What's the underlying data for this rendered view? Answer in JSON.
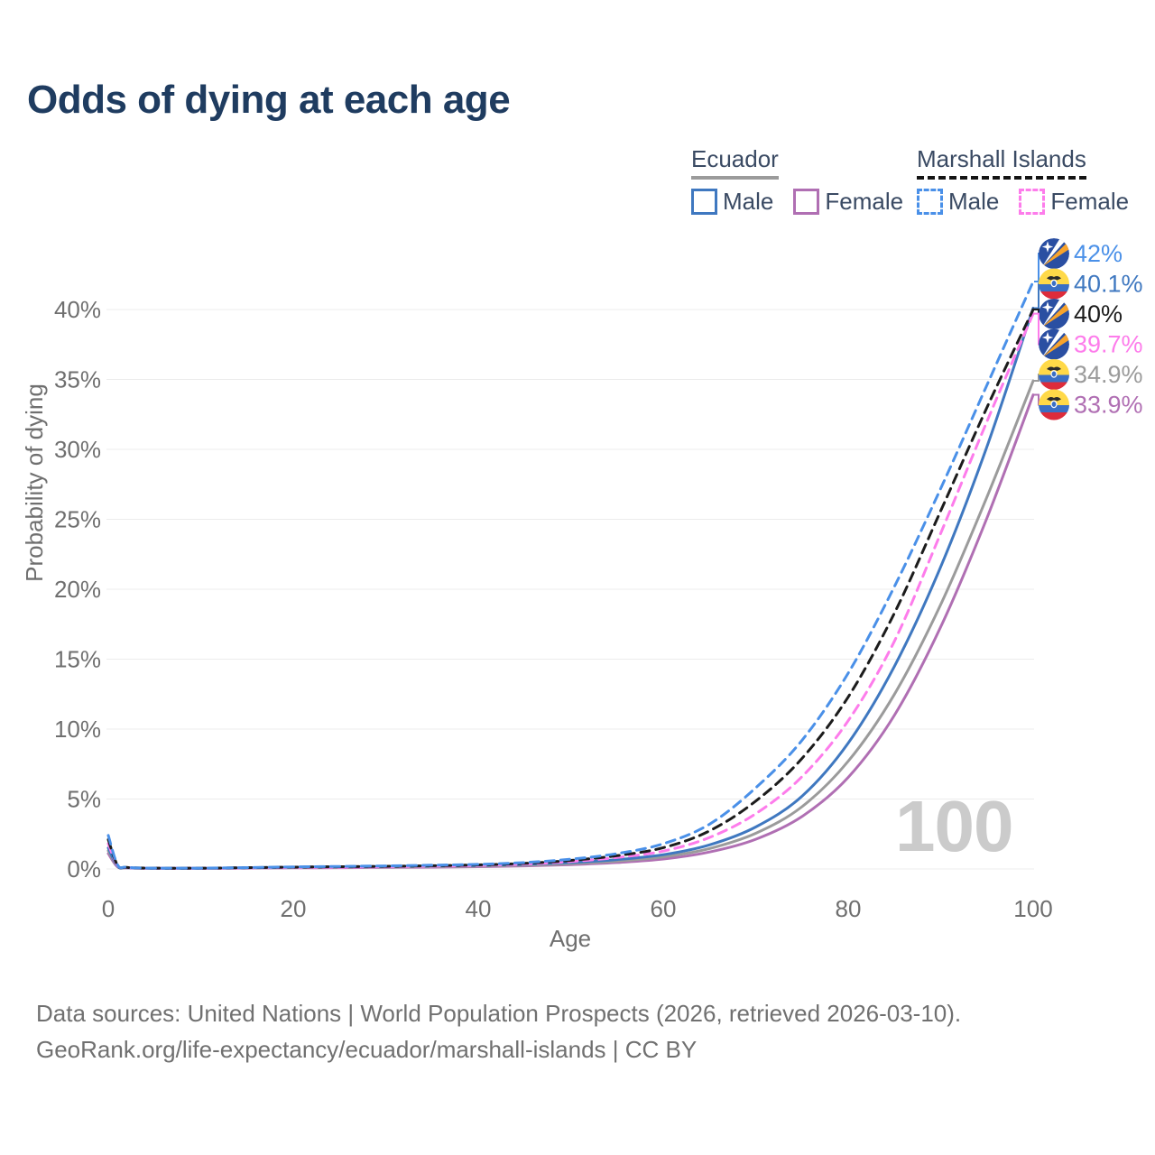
{
  "title": "Odds of dying at each age",
  "legend": {
    "groups": [
      {
        "title": "Ecuador",
        "underline": "solid",
        "underline_color": "#9b9b9b",
        "items": [
          {
            "label": "Male",
            "color": "#3f78c0",
            "dash": false
          },
          {
            "label": "Female",
            "color": "#b06fb3",
            "dash": false
          }
        ]
      },
      {
        "title": "Marshall Islands",
        "underline": "dashed",
        "underline_color": "#141414",
        "items": [
          {
            "label": "Male",
            "color": "#4a90e8",
            "dash": true
          },
          {
            "label": "Female",
            "color": "#fd7ceb",
            "dash": true
          }
        ]
      }
    ]
  },
  "watermark": "100",
  "source_line1": "Data sources: United Nations | World Population Prospects (2026, retrieved 2026-03-10).",
  "source_line2": "GeoRank.org/life-expectancy/ecuador/marshall-islands | CC BY",
  "chart_data": {
    "type": "line",
    "title": "Odds of dying at each age",
    "xlabel": "Age",
    "ylabel": "Probability of dying",
    "xlim": [
      0,
      100
    ],
    "ylim_pct": [
      0,
      44
    ],
    "x_ticks": [
      0,
      20,
      40,
      60,
      80,
      100
    ],
    "y_ticks_pct": [
      0,
      5,
      10,
      15,
      20,
      25,
      30,
      35,
      40
    ],
    "grid": "horizontal",
    "legend_position": "top-right",
    "x": [
      0,
      1,
      2,
      5,
      10,
      15,
      20,
      25,
      30,
      35,
      40,
      45,
      50,
      55,
      60,
      65,
      70,
      75,
      80,
      85,
      90,
      95,
      100
    ],
    "series": [
      {
        "id": "ec_female",
        "name": "Ecuador Female",
        "color": "#b06fb3",
        "dash": null,
        "flag": "ec",
        "values_pct": [
          1.1,
          0.15,
          0.07,
          0.04,
          0.04,
          0.055,
          0.075,
          0.09,
          0.11,
          0.13,
          0.16,
          0.22,
          0.31,
          0.46,
          0.71,
          1.21,
          2.12,
          3.75,
          6.55,
          11.0,
          17.3,
          25.1,
          33.9
        ],
        "end_label": "33.9%"
      },
      {
        "id": "ec_total",
        "name": "Ecuador",
        "color": "#9b9b9b",
        "dash": null,
        "flag": "ec",
        "values_pct": [
          1.3,
          0.18,
          0.08,
          0.045,
          0.045,
          0.07,
          0.1,
          0.12,
          0.14,
          0.17,
          0.2,
          0.27,
          0.38,
          0.56,
          0.86,
          1.46,
          2.55,
          4.45,
          7.7,
          12.5,
          18.9,
          26.6,
          34.9
        ],
        "end_label": "34.9%"
      },
      {
        "id": "ec_male",
        "name": "Ecuador Male",
        "color": "#3f78c0",
        "dash": null,
        "flag": "ec",
        "values_pct": [
          1.5,
          0.2,
          0.09,
          0.05,
          0.05,
          0.09,
          0.13,
          0.16,
          0.18,
          0.21,
          0.25,
          0.33,
          0.46,
          0.67,
          1.02,
          1.72,
          3.0,
          5.2,
          9.0,
          14.5,
          21.6,
          30.2,
          40.1
        ],
        "end_label": "40.1%"
      },
      {
        "id": "mi_female",
        "name": "Marshall Islands Female",
        "color": "#fd7ceb",
        "dash": "10 7",
        "flag": "mh",
        "values_pct": [
          1.8,
          0.24,
          0.1,
          0.05,
          0.05,
          0.075,
          0.11,
          0.13,
          0.16,
          0.2,
          0.25,
          0.35,
          0.53,
          0.82,
          1.28,
          2.25,
          3.95,
          6.6,
          10.6,
          16.3,
          24.0,
          32.0,
          39.7
        ],
        "end_label": "39.7%"
      },
      {
        "id": "mi_total",
        "name": "Marshall Islands",
        "color": "#1c1c1c",
        "dash": "10 7",
        "flag": "mh",
        "values_pct": [
          2.1,
          0.27,
          0.11,
          0.055,
          0.055,
          0.09,
          0.13,
          0.16,
          0.19,
          0.23,
          0.29,
          0.4,
          0.61,
          0.95,
          1.52,
          2.72,
          4.85,
          7.9,
          12.3,
          18.3,
          25.6,
          33.0,
          40.0
        ],
        "end_label": "40%"
      },
      {
        "id": "mi_male",
        "name": "Marshall Islands Male",
        "color": "#4a90e8",
        "dash": "10 7",
        "flag": "mh",
        "values_pct": [
          2.4,
          0.3,
          0.12,
          0.06,
          0.06,
          0.1,
          0.15,
          0.18,
          0.22,
          0.27,
          0.33,
          0.46,
          0.7,
          1.1,
          1.8,
          3.2,
          5.8,
          9.2,
          14.0,
          20.2,
          27.2,
          34.6,
          42.0
        ],
        "end_label": "42%"
      }
    ],
    "value_labels_order": [
      "mi_male",
      "ec_male",
      "mi_total",
      "mi_female",
      "ec_total",
      "ec_female"
    ]
  }
}
